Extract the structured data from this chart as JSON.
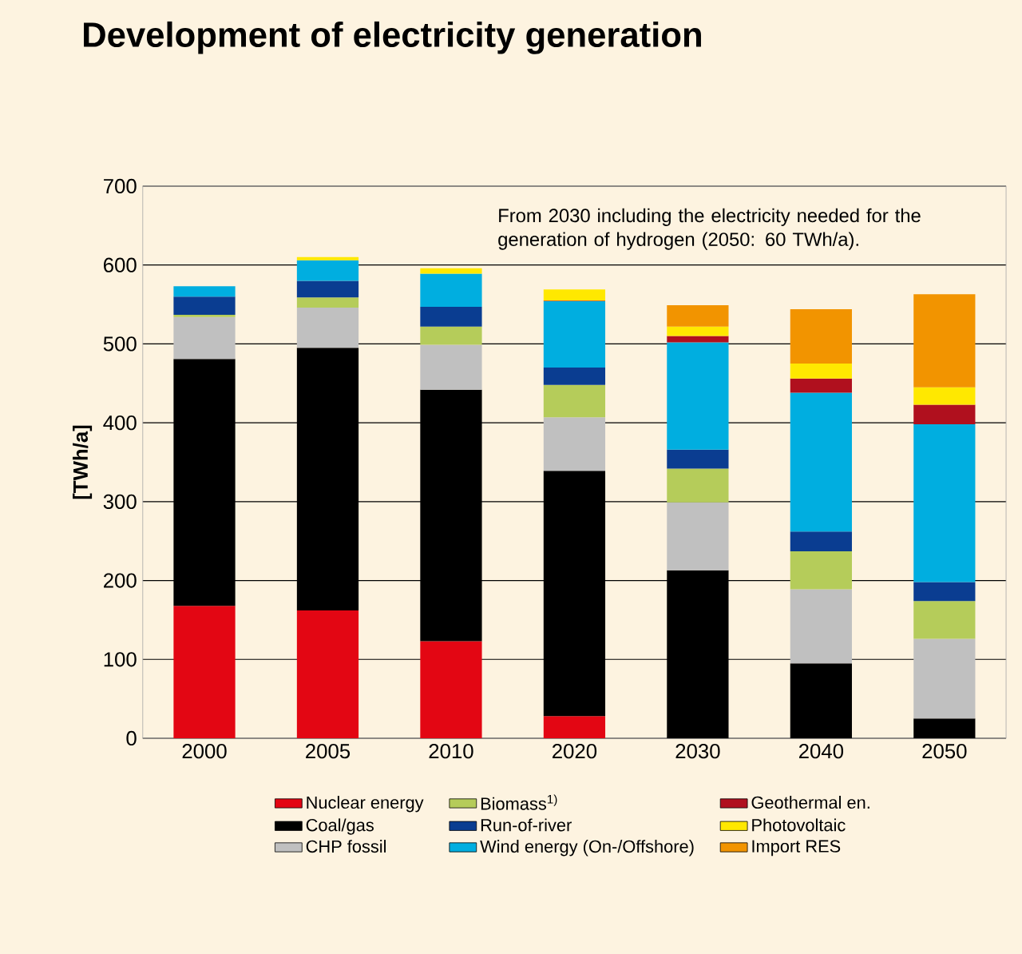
{
  "chart_data": {
    "type": "bar",
    "stacked": true,
    "title": "Development of electricity generation",
    "ylabel": "[TWh/a]",
    "categories": [
      "2000",
      "2005",
      "2010",
      "2020",
      "2030",
      "2040",
      "2050"
    ],
    "ylim": [
      0,
      700
    ],
    "yticks": [
      0,
      100,
      200,
      300,
      400,
      500,
      600,
      700
    ],
    "grid": "y",
    "legend": "bottom",
    "annotations": [
      "From 2030 including the electricity needed for the generation of hydrogen (2050: 60 TWh/a)."
    ],
    "series": [
      {
        "name": "Nuclear energy",
        "color": "#e30613",
        "values": [
          168,
          162,
          123,
          28,
          null,
          null,
          null
        ]
      },
      {
        "name": "Coal/gas",
        "color": "#000000",
        "values": [
          313,
          333,
          319,
          311,
          213,
          95,
          25
        ]
      },
      {
        "name": "CHP fossil",
        "color": "#c0c0c0",
        "values": [
          53,
          51,
          57,
          68,
          86,
          94,
          101
        ]
      },
      {
        "name": "Biomass$^{1)}$",
        "color": "#b5cc5a",
        "values": [
          3,
          13,
          23,
          41,
          43,
          48,
          48
        ]
      },
      {
        "name": "Run-of-river",
        "color": "#0a3d91",
        "values": [
          23,
          21,
          25,
          22,
          24,
          25,
          24
        ]
      },
      {
        "name": "Wind energy (On-/Offshore)",
        "color": "#00aee0",
        "values": [
          13,
          26,
          42,
          84,
          136,
          176,
          200
        ]
      },
      {
        "name": "Geothermal en.",
        "color": "#b0101e",
        "values": [
          null,
          null,
          null,
          1,
          8,
          18,
          25
        ]
      },
      {
        "name": "Photovoltaic",
        "color": "#ffe800",
        "values": [
          null,
          4,
          7,
          14,
          12,
          19,
          22
        ]
      },
      {
        "name": "Import RES",
        "color": "#f29400",
        "values": [
          null,
          null,
          null,
          null,
          27,
          69,
          118
        ]
      }
    ]
  }
}
